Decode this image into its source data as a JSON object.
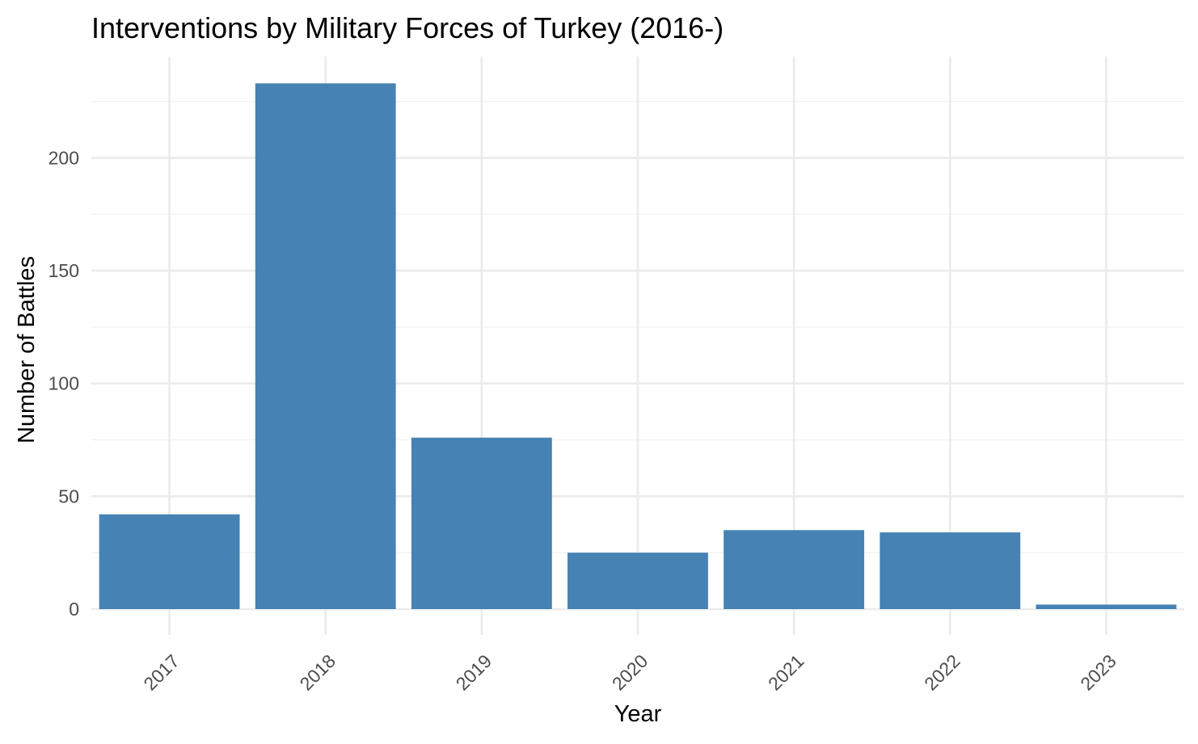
{
  "chart_data": {
    "type": "bar",
    "title": "Interventions by Military Forces of Turkey (2016-)",
    "xlabel": "Year",
    "ylabel": "Number of Battles",
    "categories": [
      "2017",
      "2018",
      "2019",
      "2020",
      "2021",
      "2022",
      "2023"
    ],
    "values": [
      42,
      233,
      76,
      25,
      35,
      34,
      2
    ],
    "ylim": [
      0,
      244
    ],
    "yticks": [
      0,
      50,
      100,
      150,
      200
    ],
    "ytick_labels": [
      "0",
      "50",
      "100",
      "150",
      "200"
    ],
    "grid": true,
    "legend": "none",
    "bar_color": "#4682B4",
    "x_tick_rotation": -45
  }
}
